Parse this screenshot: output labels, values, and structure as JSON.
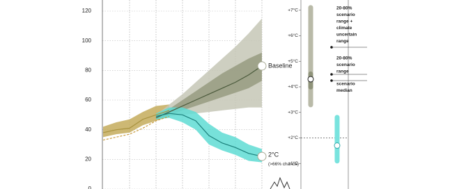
{
  "chart_data": [
    {
      "type": "line",
      "categories": [
        null,
        null,
        null,
        null,
        null,
        null,
        null,
        null,
        null,
        null,
        null,
        null,
        null
      ],
      "ylim": [
        0,
        127.5
      ],
      "yticks": [
        0,
        20,
        40,
        60,
        80,
        100,
        120
      ],
      "grid": true,
      "series": [
        {
          "color": "#a8923e",
          "values": [
            38,
            40,
            41,
            47,
            50,
            53,
            null,
            null,
            null,
            null,
            null,
            null,
            null
          ],
          "band_color": "#c4ac5c",
          "upper": [
            42,
            45,
            47,
            52,
            56,
            57,
            null,
            null,
            null,
            null,
            null,
            null,
            null
          ],
          "lower": [
            35,
            37,
            38,
            43,
            46,
            49,
            null,
            null,
            null,
            null,
            null,
            null,
            null
          ]
        },
        {
          "color": "#c89a3c",
          "dashed": true,
          "values": [
            33,
            35,
            37,
            41,
            46,
            49,
            null,
            null,
            null,
            null,
            null,
            null,
            null
          ]
        },
        {
          "name": "Baseline",
          "color": "#4b5a3c",
          "values": [
            null,
            null,
            null,
            null,
            48,
            52,
            56,
            60,
            64,
            68,
            72,
            77,
            83
          ],
          "band_color": "#c6c7b6",
          "upper": [
            null,
            null,
            null,
            null,
            50,
            57,
            64,
            72,
            80,
            88,
            96,
            105,
            115
          ],
          "lower": [
            null,
            null,
            null,
            null,
            47,
            49,
            50,
            51,
            52,
            53,
            54,
            55,
            55
          ],
          "inner_color": "#9a9d84",
          "inner_upper": [
            null,
            null,
            null,
            null,
            49,
            54,
            60,
            66,
            72,
            78,
            83,
            88,
            92
          ],
          "inner_lower": [
            null,
            null,
            null,
            null,
            47,
            50,
            53,
            56,
            59,
            62,
            65,
            68,
            73
          ]
        },
        {
          "name": "2°C",
          "note": "(>66% chance)",
          "color": "#1a7f7a",
          "values": [
            null,
            null,
            null,
            null,
            49,
            51,
            50,
            46,
            36,
            31,
            28,
            24,
            22
          ],
          "band_color": "#5fdcd4",
          "upper": [
            null,
            null,
            null,
            null,
            51,
            55,
            55,
            52,
            44,
            38,
            35,
            30,
            27
          ],
          "lower": [
            null,
            null,
            null,
            null,
            47,
            48,
            45,
            40,
            30,
            26,
            23,
            19,
            18
          ]
        }
      ]
    },
    {
      "type": "range",
      "ylim": [
        0,
        7.4
      ],
      "yticks": [
        {
          "value": 1,
          "label": "+1°C"
        },
        {
          "value": 2,
          "label": "+2°C"
        },
        {
          "value": 3,
          "label": "+3°C"
        },
        {
          "value": 4,
          "label": "+4°C"
        },
        {
          "value": 5,
          "label": "+5°C"
        },
        {
          "value": 6,
          "label": "+6°C"
        },
        {
          "value": 7,
          "label": "+7°C"
        }
      ],
      "ranges": [
        {
          "color": "#b9baa8",
          "low": 3.2,
          "high": 7.2,
          "inner_color": "#8f937a",
          "inner_low": 3.9,
          "inner_high": 4.6,
          "median": 4.3
        },
        {
          "color": "#79e3de",
          "low": 1.0,
          "high": 2.9,
          "median": 1.7
        }
      ],
      "annotations": [
        [
          "20-80%",
          "scenario",
          "range +",
          "climate",
          "uncertain",
          "range"
        ],
        [
          "20-80%",
          "scenario",
          "range"
        ],
        [
          "scenario",
          "median"
        ]
      ]
    }
  ]
}
